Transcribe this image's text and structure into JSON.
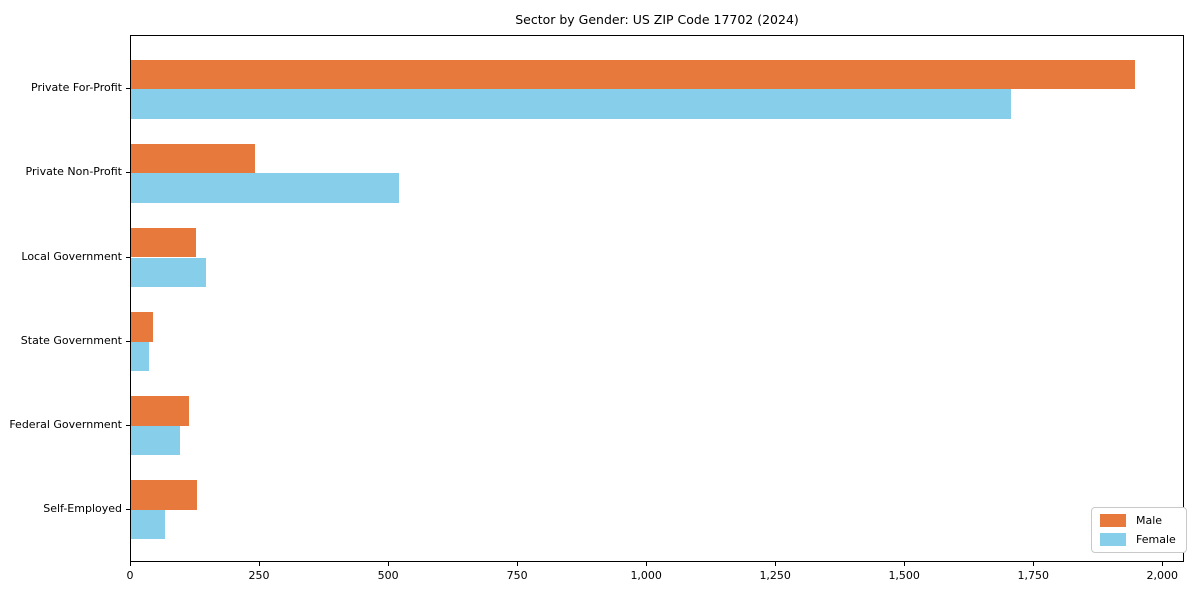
{
  "title": "Sector by Gender: US ZIP Code 17702 (2024)",
  "colors": {
    "male": "#e8793d",
    "female": "#87ceeb",
    "axis": "#000000",
    "legend_border": "#c9c9c9",
    "background": "#ffffff"
  },
  "chart_data": {
    "type": "bar",
    "orientation": "horizontal",
    "title": "Sector by Gender: US ZIP Code 17702 (2024)",
    "xlabel": "",
    "ylabel": "",
    "grid": false,
    "legend_position": "lower right",
    "categories": [
      "Private For-Profit",
      "Private Non-Profit",
      "Local Government",
      "State Government",
      "Federal Government",
      "Self-Employed"
    ],
    "series": [
      {
        "name": "Male",
        "color": "#e8793d",
        "values": [
          1945,
          240,
          125,
          43,
          113,
          127
        ]
      },
      {
        "name": "Female",
        "color": "#87ceeb",
        "values": [
          1705,
          520,
          145,
          35,
          94,
          66
        ]
      }
    ],
    "xlim": [
      0,
      2042
    ],
    "xticks": [
      0,
      250,
      500,
      750,
      1000,
      1250,
      1500,
      1750,
      2000
    ],
    "xtick_labels": [
      "0",
      "250",
      "500",
      "750",
      "1,000",
      "1,250",
      "1,500",
      "1,750",
      "2,000"
    ]
  }
}
